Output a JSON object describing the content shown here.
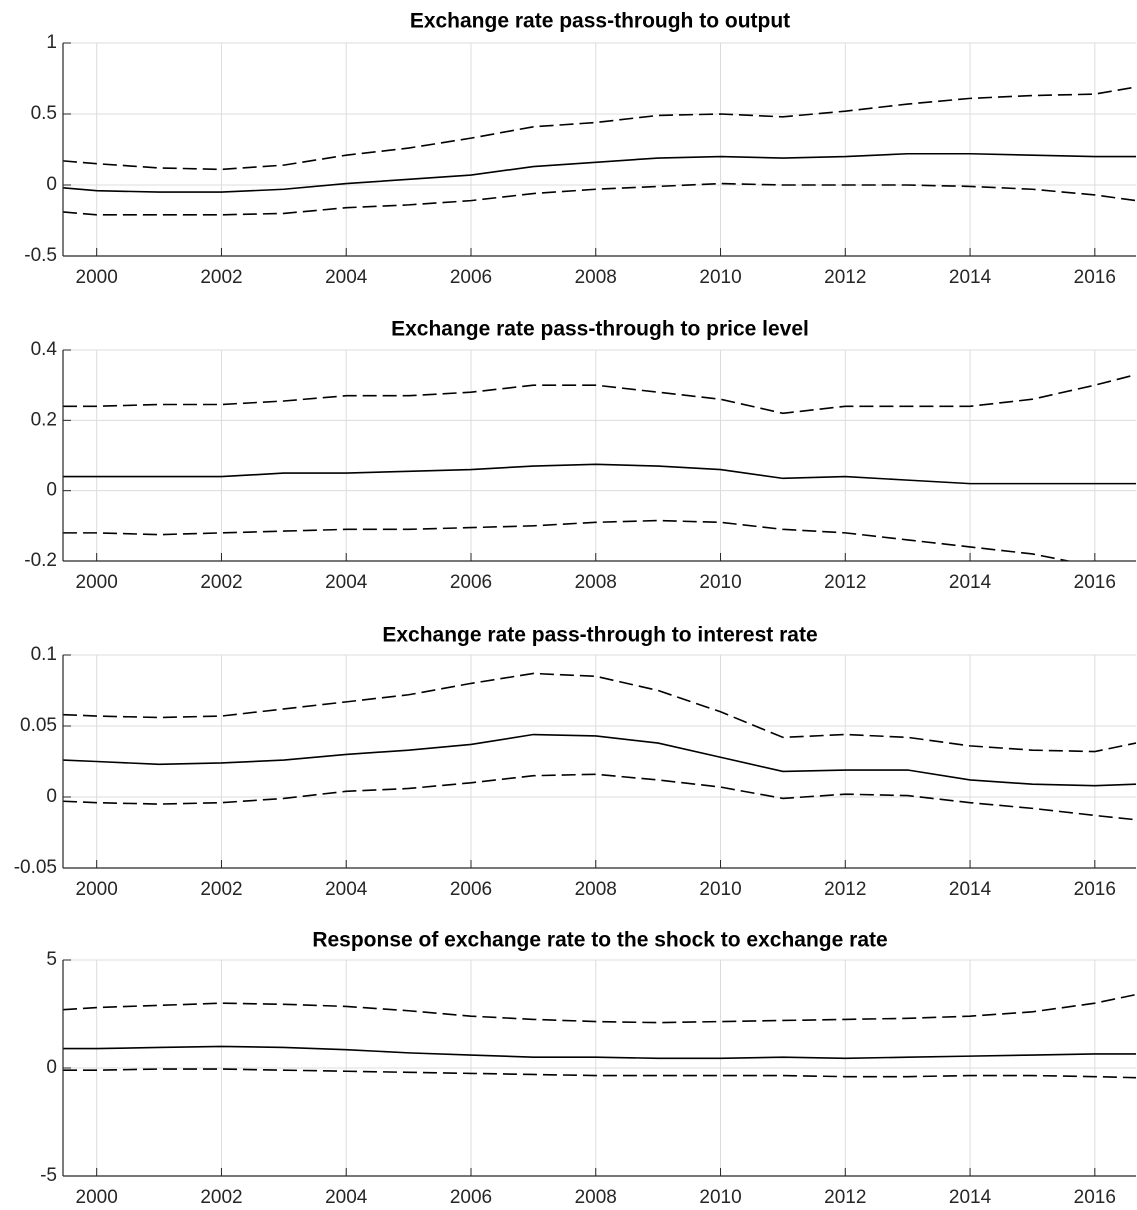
{
  "chart_data": [
    {
      "type": "line",
      "title": "Exchange rate pass-through to output",
      "x": [
        1999.46,
        2000,
        2001,
        2002,
        2003,
        2004,
        2005,
        2006,
        2007,
        2008,
        2009,
        2010,
        2011,
        2012,
        2013,
        2014,
        2015,
        2016,
        2016.66
      ],
      "xlim": [
        1999.46,
        2016.66
      ],
      "xticks": [
        2000,
        2002,
        2004,
        2006,
        2008,
        2010,
        2012,
        2014,
        2016
      ],
      "ylim": [
        -0.5,
        1
      ],
      "yticks": [
        -0.5,
        0,
        0.5,
        1
      ],
      "grid": true,
      "series": [
        {
          "color": "#000000",
          "line_style": "solid",
          "values": [
            -0.02,
            -0.04,
            -0.05,
            -0.05,
            -0.03,
            0.01,
            0.04,
            0.07,
            0.13,
            0.16,
            0.19,
            0.2,
            0.19,
            0.2,
            0.22,
            0.22,
            0.21,
            0.2,
            0.2
          ]
        },
        {
          "color": "#000000",
          "line_style": "dashed",
          "values": [
            0.17,
            0.15,
            0.12,
            0.11,
            0.14,
            0.21,
            0.26,
            0.33,
            0.41,
            0.44,
            0.49,
            0.5,
            0.48,
            0.52,
            0.57,
            0.61,
            0.63,
            0.64,
            0.69
          ]
        },
        {
          "color": "#000000",
          "line_style": "dashed",
          "values": [
            -0.19,
            -0.21,
            -0.21,
            -0.21,
            -0.2,
            -0.16,
            -0.14,
            -0.11,
            -0.06,
            -0.03,
            -0.01,
            0.01,
            0,
            0,
            0,
            -0.01,
            -0.03,
            -0.07,
            -0.11
          ]
        }
      ]
    },
    {
      "type": "line",
      "title": "Exchange rate pass-through to price level",
      "x": [
        1999.46,
        2000,
        2001,
        2002,
        2003,
        2004,
        2005,
        2006,
        2007,
        2008,
        2009,
        2010,
        2011,
        2012,
        2013,
        2014,
        2015,
        2016,
        2016.66
      ],
      "xlim": [
        1999.46,
        2016.66
      ],
      "xticks": [
        2000,
        2002,
        2004,
        2006,
        2008,
        2010,
        2012,
        2014,
        2016
      ],
      "ylim": [
        -0.2,
        0.4
      ],
      "yticks": [
        -0.2,
        0,
        0.2,
        0.4
      ],
      "grid": true,
      "series": [
        {
          "color": "#000000",
          "line_style": "solid",
          "values": [
            0.04,
            0.04,
            0.04,
            0.04,
            0.05,
            0.05,
            0.055,
            0.06,
            0.07,
            0.075,
            0.07,
            0.06,
            0.035,
            0.04,
            0.03,
            0.02,
            0.02,
            0.02,
            0.02
          ]
        },
        {
          "color": "#000000",
          "line_style": "dashed",
          "values": [
            0.24,
            0.24,
            0.245,
            0.245,
            0.255,
            0.27,
            0.27,
            0.28,
            0.3,
            0.3,
            0.28,
            0.26,
            0.22,
            0.24,
            0.24,
            0.24,
            0.26,
            0.3,
            0.33
          ]
        },
        {
          "color": "#000000",
          "line_style": "dashed",
          "values": [
            -0.12,
            -0.12,
            -0.125,
            -0.12,
            -0.115,
            -0.11,
            -0.11,
            -0.105,
            -0.1,
            -0.09,
            -0.085,
            -0.09,
            -0.11,
            -0.12,
            -0.14,
            -0.16,
            -0.18,
            -0.215,
            -0.23
          ]
        }
      ]
    },
    {
      "type": "line",
      "title": "Exchange rate pass-through to interest rate",
      "x": [
        1999.46,
        2000,
        2001,
        2002,
        2003,
        2004,
        2005,
        2006,
        2007,
        2008,
        2009,
        2010,
        2011,
        2012,
        2013,
        2014,
        2015,
        2016,
        2016.66
      ],
      "xlim": [
        1999.46,
        2016.66
      ],
      "xticks": [
        2000,
        2002,
        2004,
        2006,
        2008,
        2010,
        2012,
        2014,
        2016
      ],
      "ylim": [
        -0.05,
        0.1
      ],
      "yticks": [
        -0.05,
        0,
        0.05,
        0.1
      ],
      "grid": true,
      "series": [
        {
          "color": "#000000",
          "line_style": "solid",
          "values": [
            0.026,
            0.025,
            0.023,
            0.024,
            0.026,
            0.03,
            0.033,
            0.037,
            0.044,
            0.043,
            0.038,
            0.028,
            0.018,
            0.019,
            0.019,
            0.012,
            0.009,
            0.008,
            0.009
          ]
        },
        {
          "color": "#000000",
          "line_style": "dashed",
          "values": [
            0.058,
            0.057,
            0.056,
            0.057,
            0.062,
            0.067,
            0.072,
            0.08,
            0.087,
            0.085,
            0.075,
            0.06,
            0.042,
            0.044,
            0.042,
            0.036,
            0.033,
            0.032,
            0.038
          ]
        },
        {
          "color": "#000000",
          "line_style": "dashed",
          "values": [
            -0.003,
            -0.004,
            -0.005,
            -0.004,
            -0.001,
            0.004,
            0.006,
            0.01,
            0.015,
            0.016,
            0.012,
            0.007,
            -0.001,
            0.002,
            0.001,
            -0.004,
            -0.008,
            -0.013,
            -0.016
          ]
        }
      ]
    },
    {
      "type": "line",
      "title": "Response of exchange rate to the shock to exchange rate",
      "x": [
        1999.46,
        2000,
        2001,
        2002,
        2003,
        2004,
        2005,
        2006,
        2007,
        2008,
        2009,
        2010,
        2011,
        2012,
        2013,
        2014,
        2015,
        2016,
        2016.66
      ],
      "xlim": [
        1999.46,
        2016.66
      ],
      "xticks": [
        2000,
        2002,
        2004,
        2006,
        2008,
        2010,
        2012,
        2014,
        2016
      ],
      "ylim": [
        -5,
        5
      ],
      "yticks": [
        -5,
        0,
        5
      ],
      "grid": true,
      "series": [
        {
          "color": "#000000",
          "line_style": "solid",
          "values": [
            0.9,
            0.9,
            0.95,
            1.0,
            0.95,
            0.85,
            0.7,
            0.6,
            0.5,
            0.5,
            0.45,
            0.45,
            0.5,
            0.45,
            0.5,
            0.55,
            0.6,
            0.65,
            0.65
          ]
        },
        {
          "color": "#000000",
          "line_style": "dashed",
          "values": [
            2.7,
            2.8,
            2.9,
            3.0,
            2.95,
            2.85,
            2.65,
            2.4,
            2.25,
            2.15,
            2.1,
            2.15,
            2.2,
            2.25,
            2.3,
            2.4,
            2.6,
            3.0,
            3.4
          ]
        },
        {
          "color": "#000000",
          "line_style": "dashed",
          "values": [
            -0.1,
            -0.1,
            -0.05,
            -0.05,
            -0.1,
            -0.15,
            -0.2,
            -0.25,
            -0.3,
            -0.35,
            -0.35,
            -0.35,
            -0.35,
            -0.4,
            -0.4,
            -0.35,
            -0.35,
            -0.4,
            -0.45
          ]
        }
      ]
    }
  ]
}
